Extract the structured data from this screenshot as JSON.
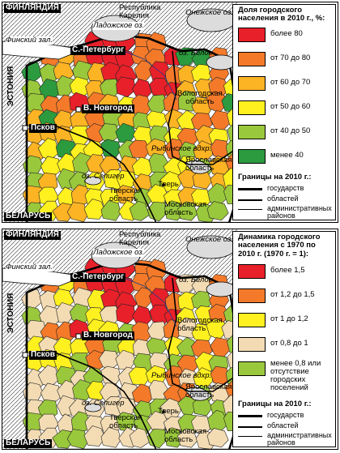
{
  "colors": {
    "gt80": "#e8202a",
    "r70_80": "#f47a2a",
    "r60_70": "#fcb424",
    "r50_60": "#fff020",
    "r40_50": "#9ac83c",
    "lt40": "#2c9a3e",
    "d_gt15": "#e8202a",
    "d_12_15": "#f47a2a",
    "d_1_12": "#fff020",
    "d_08_1": "#f3dcb4",
    "d_lt08": "#9ac83c",
    "foreign": "#ffffff",
    "lake": "#dcdcdc"
  },
  "places": {
    "finland": "ФИНЛЯНДИЯ",
    "karelia": "Республика\nКарелия",
    "onega": "Онежское оз.",
    "ladoga": "Ладожское оз.",
    "gulf": "Финский зал.",
    "spb": "С.-Петербург",
    "beloe": "оз. Белое",
    "estonia": "ЭСТОНИЯ",
    "vologda": "Вологодская\nобласть",
    "novgorod": "В. Новгород",
    "pskov": "Псков",
    "rybinsk": "Рыбинское вдхр.",
    "yaroslavl": "Ярославская\nобласть",
    "seliger": "оз. Селигер",
    "tver_city": "Тверь",
    "tver_obl": "Тверская\nобласть",
    "moscow_obl": "Московская\nобласть",
    "belarus": "БЕЛАРУСЬ"
  },
  "top": {
    "legend_title": "Доля городского населения в 2010 г., %:",
    "items": [
      {
        "label": "более 80",
        "color_key": "gt80"
      },
      {
        "label": "от 70 до 80",
        "color_key": "r70_80"
      },
      {
        "label": "от 60 до 70",
        "color_key": "r60_70"
      },
      {
        "label": "от 50 до 60",
        "color_key": "r50_60"
      },
      {
        "label": "от 40 до 50",
        "color_key": "r40_50"
      },
      {
        "label": "менее 40",
        "color_key": "lt40"
      }
    ],
    "borders_title": "Границы на 2010 г.:",
    "borders": [
      {
        "label": "государств",
        "weight": 3
      },
      {
        "label": "областей",
        "weight": 2
      },
      {
        "label": "административных районов",
        "weight": 1
      }
    ]
  },
  "bottom": {
    "legend_title": "Динамика городского населения с 1970 по 2010 г. (1970 г. = 1):",
    "items": [
      {
        "label": "более 1,5",
        "color_key": "d_gt15"
      },
      {
        "label": "от 1,2 до 1,5",
        "color_key": "d_12_15"
      },
      {
        "label": "от 1 до 1,2",
        "color_key": "d_1_12"
      },
      {
        "label": "от 0,8 до 1",
        "color_key": "d_08_1"
      },
      {
        "label": "менее 0,8 или отсутствие городских поселений",
        "color_key": "d_lt08"
      }
    ],
    "borders_title": "Границы на 2010 г.:",
    "borders": [
      {
        "label": "государств",
        "weight": 3
      },
      {
        "label": "областей",
        "weight": 2
      },
      {
        "label": "административных районов",
        "weight": 1
      }
    ]
  }
}
